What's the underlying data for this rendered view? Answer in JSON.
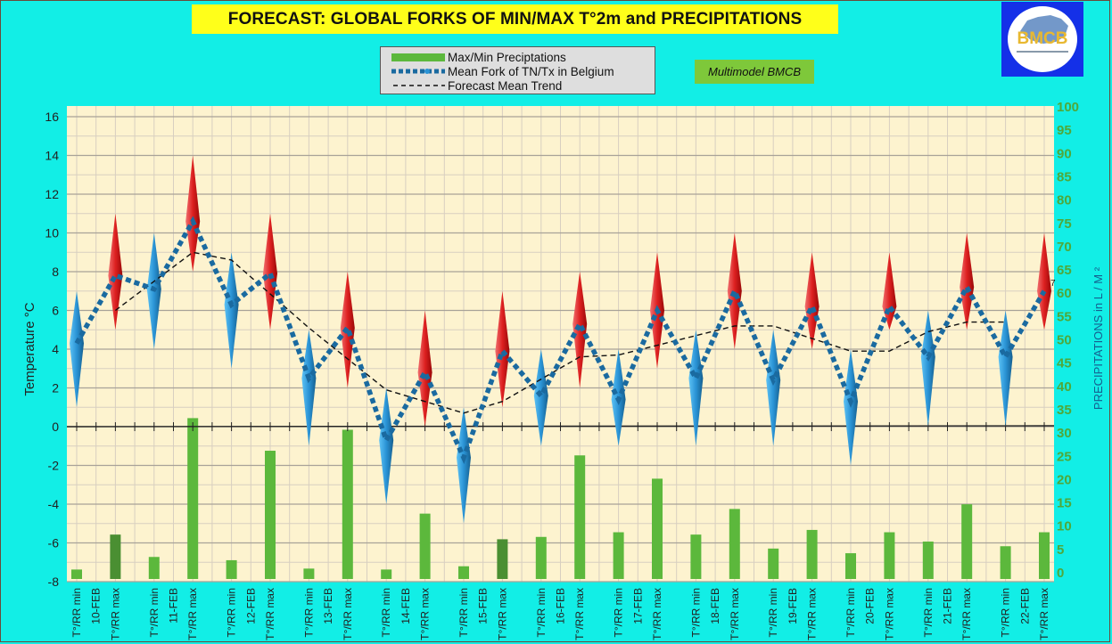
{
  "header": {
    "title": "FORECAST: GLOBAL FORKS OF  MIN/MAX T°2m and PRECIPITATIONS",
    "badge": "Multimodel BMCB",
    "logo_text": "BMCB"
  },
  "legend": {
    "items": [
      {
        "label": "Max/Min Preciptations",
        "kind": "bar"
      },
      {
        "label": "Mean Fork of TN/Tx in Belgium",
        "kind": "dotted-line"
      },
      {
        "label": "Forecast Mean Trend",
        "kind": "dashed-line"
      }
    ]
  },
  "colors": {
    "background": "#12eee6",
    "plot_bg": "#fdf3cf",
    "precip": "#5cb83c",
    "precip_dark": "#4a8f32",
    "min_diamond": "#2a93d5",
    "max_diamond": "#d91a1a",
    "mean_fork": "#1a6aa0",
    "title_bg": "#ffff1a",
    "right_axis": "#4fa83a"
  },
  "chart_data": {
    "type": "combo",
    "title": "FORECAST: GLOBAL FORKS OF  MIN/MAX T°2m and PRECIPITATIONS",
    "ylabel": "Temperature  °C",
    "y2label": "PRECIPITATIONS in L / M ²",
    "ylim": [
      -8,
      16
    ],
    "yticks": [
      -8,
      -6,
      -4,
      -2,
      0,
      2,
      4,
      6,
      8,
      10,
      12,
      14,
      16
    ],
    "y2lim": [
      0,
      100
    ],
    "y2ticks": [
      0,
      5,
      10,
      15,
      20,
      25,
      30,
      35,
      40,
      45,
      50,
      55,
      60,
      65,
      70,
      75,
      80,
      85,
      90,
      95,
      100
    ],
    "grid": true,
    "legend_position": "top-center",
    "end_label": "7",
    "days": [
      "10-FEB",
      "11-FEB",
      "12-FEB",
      "13-FEB",
      "14-FEB",
      "15-FEB",
      "16-FEB",
      "17-FEB",
      "18-FEB",
      "19-FEB",
      "20-FEB",
      "21-FEB",
      "22-FEB"
    ],
    "min_label": "T°/RR min",
    "max_label": "T°/RR max",
    "points": [
      {
        "day": "10-FEB",
        "kind": "min",
        "low": 1,
        "high": 7,
        "mean": 4.3,
        "precip": 0.5
      },
      {
        "day": "10-FEB",
        "kind": "max",
        "low": 5,
        "high": 11,
        "mean": 7.8,
        "precip": 8
      },
      {
        "day": "11-FEB",
        "kind": "min",
        "low": 4,
        "high": 10,
        "mean": 7.1,
        "precip": 3.2
      },
      {
        "day": "11-FEB",
        "kind": "max",
        "low": 8,
        "high": 14,
        "mean": 10.6,
        "precip": 33
      },
      {
        "day": "12-FEB",
        "kind": "min",
        "low": 3,
        "high": 9,
        "mean": 6.3,
        "precip": 2.5
      },
      {
        "day": "12-FEB",
        "kind": "max",
        "low": 5,
        "high": 11,
        "mean": 7.9,
        "precip": 26
      },
      {
        "day": "13-FEB",
        "kind": "min",
        "low": -1,
        "high": 5,
        "mean": 2.5,
        "precip": 0.7
      },
      {
        "day": "13-FEB",
        "kind": "max",
        "low": 2,
        "high": 8,
        "mean": 5.1,
        "precip": 30.5
      },
      {
        "day": "14-FEB",
        "kind": "min",
        "low": -4,
        "high": 2,
        "mean": -0.7,
        "precip": 0.5
      },
      {
        "day": "14-FEB",
        "kind": "max",
        "low": 0,
        "high": 6,
        "mean": 2.8,
        "precip": 12.5
      },
      {
        "day": "15-FEB",
        "kind": "min",
        "low": -5,
        "high": 1,
        "mean": -1.6,
        "precip": 1.2
      },
      {
        "day": "15-FEB",
        "kind": "max",
        "low": 1,
        "high": 7,
        "mean": 3.9,
        "precip": 7
      },
      {
        "day": "16-FEB",
        "kind": "min",
        "low": -1,
        "high": 4,
        "mean": 1.6,
        "precip": 7.5
      },
      {
        "day": "16-FEB",
        "kind": "max",
        "low": 2,
        "high": 8,
        "mean": 5.3,
        "precip": 25
      },
      {
        "day": "17-FEB",
        "kind": "min",
        "low": -1,
        "high": 4,
        "mean": 1.4,
        "precip": 8.5
      },
      {
        "day": "17-FEB",
        "kind": "max",
        "low": 3,
        "high": 9,
        "mean": 6.0,
        "precip": 20
      },
      {
        "day": "18-FEB",
        "kind": "min",
        "low": -1,
        "high": 5,
        "mean": 2.5,
        "precip": 8
      },
      {
        "day": "18-FEB",
        "kind": "max",
        "low": 4,
        "high": 10,
        "mean": 7.0,
        "precip": 13.5
      },
      {
        "day": "19-FEB",
        "kind": "min",
        "low": -1,
        "high": 5,
        "mean": 2.4,
        "precip": 5
      },
      {
        "day": "19-FEB",
        "kind": "max",
        "low": 4,
        "high": 9,
        "mean": 6.2,
        "precip": 9
      },
      {
        "day": "20-FEB",
        "kind": "min",
        "low": -2,
        "high": 4,
        "mean": 1.3,
        "precip": 4
      },
      {
        "day": "20-FEB",
        "kind": "max",
        "low": 5,
        "high": 9,
        "mean": 6.2,
        "precip": 8.5
      },
      {
        "day": "21-FEB",
        "kind": "min",
        "low": 0,
        "high": 6,
        "mean": 3.6,
        "precip": 6.5
      },
      {
        "day": "21-FEB",
        "kind": "max",
        "low": 5,
        "high": 10,
        "mean": 7.2,
        "precip": 14.5
      },
      {
        "day": "22-FEB",
        "kind": "min",
        "low": 0,
        "high": 6,
        "mean": 3.6,
        "precip": 5.5
      },
      {
        "day": "22-FEB",
        "kind": "max",
        "low": 5,
        "high": 10,
        "mean": 7.0,
        "precip": 8.5
      }
    ],
    "trend": [
      {
        "index": 1,
        "value": 6.0
      },
      {
        "index": 3,
        "value": 9.0
      },
      {
        "index": 4,
        "value": 8.6
      },
      {
        "index": 6,
        "value": 5.1
      },
      {
        "index": 8,
        "value": 1.9
      },
      {
        "index": 10,
        "value": 0.7
      },
      {
        "index": 11,
        "value": 1.3
      },
      {
        "index": 13,
        "value": 3.6
      },
      {
        "index": 14,
        "value": 3.7
      },
      {
        "index": 17,
        "value": 5.2
      },
      {
        "index": 18,
        "value": 5.2
      },
      {
        "index": 20,
        "value": 3.9
      },
      {
        "index": 21,
        "value": 3.9
      },
      {
        "index": 22,
        "value": 4.9
      },
      {
        "index": 23,
        "value": 5.4
      },
      {
        "index": 24,
        "value": 5.4
      }
    ]
  }
}
